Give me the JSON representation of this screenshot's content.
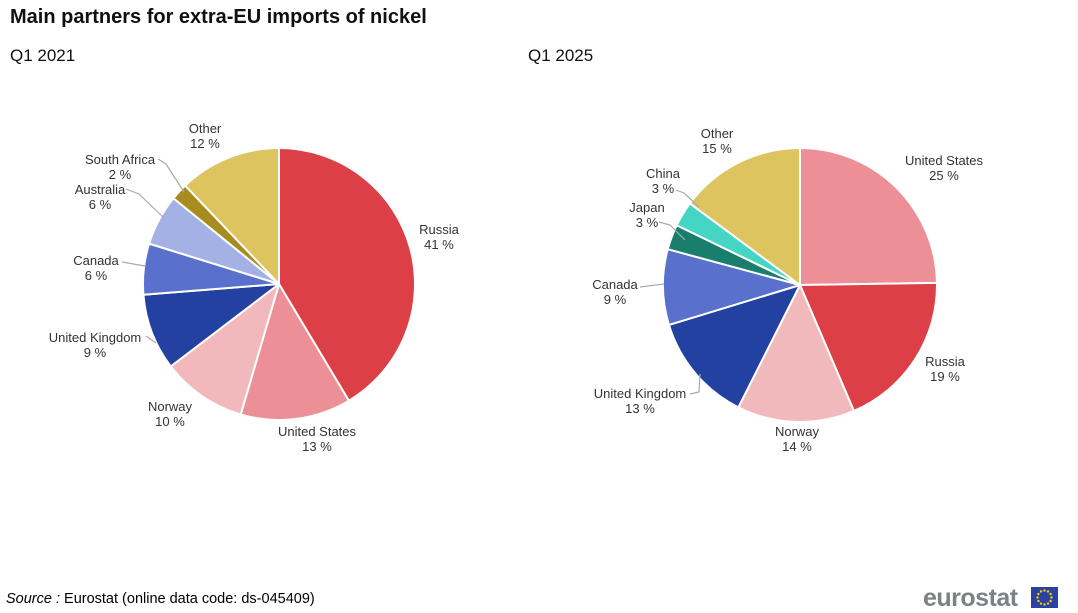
{
  "title": "Main partners for extra-EU imports of nickel",
  "source": {
    "prefix": "Source :",
    "text": " Eurostat (online data code: ds-045409)"
  },
  "logo": {
    "text": "eurostat"
  },
  "colors": {
    "russia": "#dc4046",
    "united_states": "#ec8f96",
    "norway": "#f2b9bd",
    "united_kingdom": "#2341a0",
    "canada": "#5a70cd",
    "australia": "#a3b1e5",
    "south_africa": "#a98c20",
    "japan": "#1a7e6f",
    "china": "#44d5c4",
    "other": "#ddc45f",
    "leader_line": "#aaaaaa"
  },
  "chart_data": [
    {
      "type": "pie",
      "title": "Q1 2021",
      "unit": "%",
      "start_angle_deg": 0,
      "direction": "clockwise",
      "legend_position": "labels-around-pie",
      "labels": [
        "Russia",
        "United States",
        "Norway",
        "United Kingdom",
        "Canada",
        "Australia",
        "South Africa",
        "Other"
      ],
      "values": [
        41,
        13,
        10,
        9,
        6,
        6,
        2,
        12
      ],
      "colors": [
        "#dc4046",
        "#ec8f96",
        "#f2b9bd",
        "#2341a0",
        "#5a70cd",
        "#a3b1e5",
        "#a98c20",
        "#ddc45f"
      ]
    },
    {
      "type": "pie",
      "title": "Q1 2025",
      "unit": "%",
      "start_angle_deg": 0,
      "direction": "clockwise",
      "legend_position": "labels-around-pie",
      "labels": [
        "United States",
        "Russia",
        "Norway",
        "United Kingdom",
        "Canada",
        "Japan",
        "China",
        "Other"
      ],
      "values": [
        25,
        19,
        14,
        13,
        9,
        3,
        3,
        15
      ],
      "colors": [
        "#ec8f96",
        "#dc4046",
        "#f2b9bd",
        "#2341a0",
        "#5a70cd",
        "#1a7e6f",
        "#44d5c4",
        "#ddc45f"
      ]
    }
  ]
}
